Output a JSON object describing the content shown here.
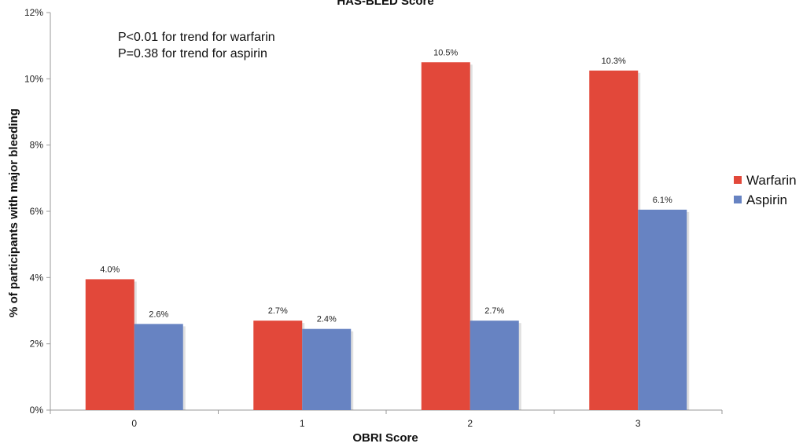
{
  "chart_data": {
    "type": "bar",
    "title": "HAS-BLED Score",
    "xlabel": "OBRI Score",
    "ylabel": "% of participants with major bleeding",
    "categories": [
      "0",
      "1",
      "2",
      "3"
    ],
    "ylim": [
      0,
      12
    ],
    "yticks": [
      0,
      2,
      4,
      6,
      8,
      10,
      12
    ],
    "ytick_labels": [
      "0%",
      "2%",
      "4%",
      "6%",
      "8%",
      "10%",
      "12%"
    ],
    "grid": false,
    "legend_position": "right",
    "series": [
      {
        "name": "Warfarin",
        "color": "#e2483a",
        "values": [
          3.95,
          2.7,
          10.5,
          10.25
        ],
        "labels": [
          "4.0%",
          "2.7%",
          "10.5%",
          "10.3%"
        ]
      },
      {
        "name": "Aspirin",
        "color": "#6783c2",
        "values": [
          2.6,
          2.45,
          2.7,
          6.05
        ],
        "labels": [
          "2.6%",
          "2.4%",
          "2.7%",
          "6.1%"
        ]
      }
    ],
    "annotations": [
      "P<0.01 for trend for warfarin",
      "P=0.38 for trend for aspirin"
    ]
  }
}
